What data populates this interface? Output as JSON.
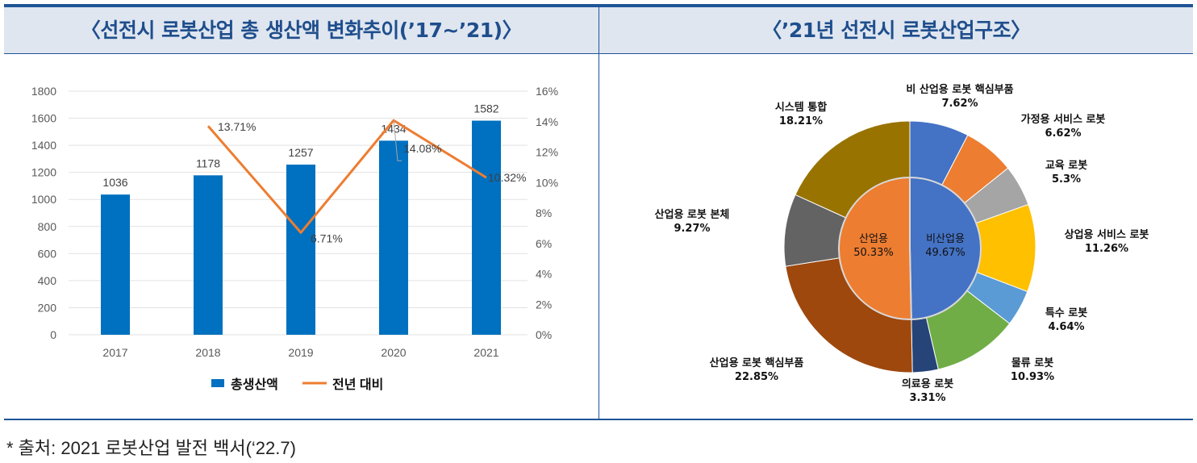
{
  "header": {
    "left_title": "〈선전시 로봇산업 총 생산액 변화추이(’17~’21)〉",
    "right_title": "〈’21년 선전시 로봇산업구조〉"
  },
  "footer": "* 출처: 2021 로봇산업 발전 백서(‘22.7)",
  "chart_data": [
    {
      "type": "bar",
      "title": "선전시 로봇산업 총 생산액 변화추이('17~'21)",
      "categories": [
        "2017",
        "2018",
        "2019",
        "2020",
        "2021"
      ],
      "series": [
        {
          "name": "총생산액",
          "type": "bar",
          "axis": "left",
          "color": "#0070c0",
          "values": [
            1036,
            1178,
            1257,
            1434,
            1582
          ],
          "labels": [
            "1036",
            "1178",
            "1257",
            "1434",
            "1582"
          ]
        },
        {
          "name": "전년 대비",
          "type": "line",
          "axis": "right",
          "color": "#ed7d31",
          "values": [
            null,
            13.71,
            6.71,
            14.08,
            10.32
          ],
          "labels": [
            "",
            "13.71%",
            "6.71%",
            "14.08%",
            "10.32%"
          ]
        }
      ],
      "ylim": [
        0,
        1800
      ],
      "yticks": [
        "0",
        "200",
        "400",
        "600",
        "800",
        "1000",
        "1200",
        "1400",
        "1600",
        "1800"
      ],
      "y2lim": [
        0,
        16
      ],
      "y2ticks": [
        "0%",
        "2%",
        "4%",
        "6%",
        "8%",
        "10%",
        "12%",
        "14%",
        "16%"
      ],
      "grid": true,
      "legend": "bottom"
    },
    {
      "type": "pie",
      "title": "'21년 선전시 로봇산업구조",
      "inner": [
        {
          "name": "산업용",
          "value": 50.33,
          "label": "50.33%",
          "color": "#ed7d31"
        },
        {
          "name": "비산업용",
          "value": 49.67,
          "label": "49.67%",
          "color": "#4472c4"
        }
      ],
      "outer": [
        {
          "name": "비 산업용 로봇 핵심부품",
          "value": 7.62,
          "label": "7.62%",
          "color": "#4472c4"
        },
        {
          "name": "가정용 서비스 로봇",
          "value": 6.62,
          "label": "6.62%",
          "color": "#ed7d31"
        },
        {
          "name": "교육 로봇",
          "value": 5.3,
          "label": "5.3%",
          "color": "#a5a5a5"
        },
        {
          "name": "상업용 서비스 로봇",
          "value": 11.26,
          "label": "11.26%",
          "color": "#ffc000"
        },
        {
          "name": "특수 로봇",
          "value": 4.64,
          "label": "4.64%",
          "color": "#5b9bd5"
        },
        {
          "name": "물류 로봇",
          "value": 10.93,
          "label": "10.93%",
          "color": "#70ad47"
        },
        {
          "name": "의료용 로봇",
          "value": 3.31,
          "label": "3.31%",
          "color": "#264478"
        },
        {
          "name": "산업용 로봇 핵심부품",
          "value": 22.85,
          "label": "22.85%",
          "color": "#9e480e"
        },
        {
          "name": "산업용 로봇 본체",
          "value": 9.27,
          "label": "9.27%",
          "color": "#636363"
        },
        {
          "name": "시스템 통합",
          "value": 18.21,
          "label": "18.21%",
          "color": "#997300"
        }
      ]
    }
  ]
}
